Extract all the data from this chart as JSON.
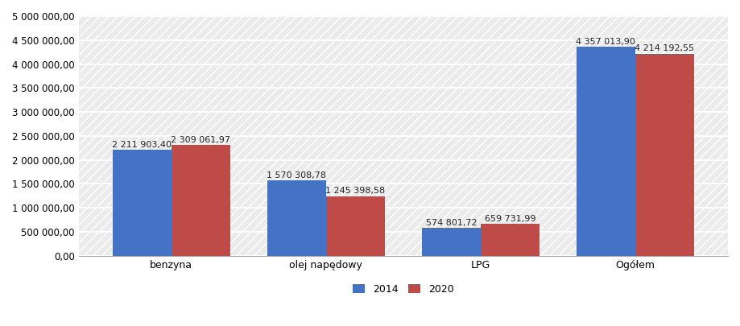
{
  "categories": [
    "benzyna",
    "olej napędowy",
    "LPG",
    "Ogółem"
  ],
  "values_2014": [
    2211903.4,
    1570308.78,
    574801.72,
    4357013.9
  ],
  "values_2020": [
    2309061.97,
    1245398.58,
    659731.99,
    4214192.55
  ],
  "labels_2014": [
    "2 211 903,40",
    "1 570 308,78",
    "574 801,72",
    "4 357 013,90"
  ],
  "labels_2020": [
    "2 309 061,97",
    "1 245 398,58",
    "659 731,99",
    "4 214 192,55"
  ],
  "color_2014": "#4472C4",
  "color_2020": "#BE4B48",
  "legend_2014": "2014",
  "legend_2020": "2020",
  "ylim": [
    0,
    5000000
  ],
  "ytick_step": 500000,
  "bar_width": 0.38,
  "background_color": "#FFFFFF",
  "grid_color": "#C0C0C0",
  "font_size_labels": 8.0,
  "font_size_axis": 9,
  "font_size_ytick": 8.5,
  "font_size_legend": 9
}
